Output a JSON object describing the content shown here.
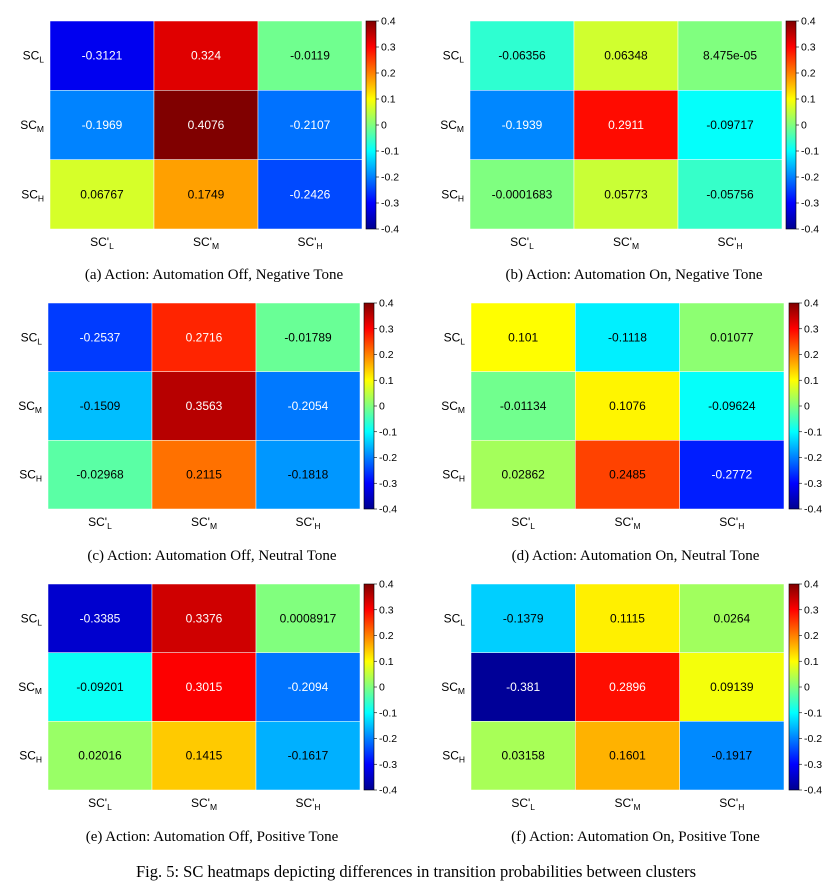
{
  "row_labels": [
    {
      "base": "SC",
      "sub": "L"
    },
    {
      "base": "SC",
      "sub": "M"
    },
    {
      "base": "SC",
      "sub": "H"
    }
  ],
  "col_labels": [
    {
      "base": "SC'",
      "sub": "L"
    },
    {
      "base": "SC'",
      "sub": "M"
    },
    {
      "base": "SC'",
      "sub": "H"
    }
  ],
  "colorbar_ticks": [
    "0.4",
    "0.3",
    "0.2",
    "0.1",
    "0",
    "-0.1",
    "-0.2",
    "-0.3",
    "-0.4"
  ],
  "figure_caption": "Fig. 5: SC heatmaps depicting differences in transition probabilities between clusters",
  "colormap": "jet",
  "chart_data": [
    {
      "type": "heatmap",
      "caption": "(a) Action: Automation Off, Negative Tone",
      "clim": [
        -0.4,
        0.4
      ],
      "values": [
        [
          "-0.3121",
          "0.324",
          "-0.0119"
        ],
        [
          "-0.1969",
          "0.4076",
          "-0.2107"
        ],
        [
          "0.06767",
          "0.1749",
          "-0.2426"
        ]
      ]
    },
    {
      "type": "heatmap",
      "caption": "(b) Action: Automation On, Negative Tone",
      "clim": [
        -0.4,
        0.4
      ],
      "values": [
        [
          "-0.06356",
          "0.06348",
          "8.475e-05"
        ],
        [
          "-0.1939",
          "0.2911",
          "-0.09717"
        ],
        [
          "-0.0001683",
          "0.05773",
          "-0.05756"
        ]
      ]
    },
    {
      "type": "heatmap",
      "caption": "(c) Action: Automation Off, Neutral Tone",
      "clim": [
        -0.4,
        0.4
      ],
      "values": [
        [
          "-0.2537",
          "0.2716",
          "-0.01789"
        ],
        [
          "-0.1509",
          "0.3563",
          "-0.2054"
        ],
        [
          "-0.02968",
          "0.2115",
          "-0.1818"
        ]
      ]
    },
    {
      "type": "heatmap",
      "caption": "(d) Action: Automation On, Neutral Tone",
      "clim": [
        -0.4,
        0.4
      ],
      "values": [
        [
          "0.101",
          "-0.1118",
          "0.01077"
        ],
        [
          "-0.01134",
          "0.1076",
          "-0.09624"
        ],
        [
          "0.02862",
          "0.2485",
          "-0.2772"
        ]
      ]
    },
    {
      "type": "heatmap",
      "caption": "(e) Action: Automation Off, Positive Tone",
      "clim": [
        -0.4,
        0.4
      ],
      "values": [
        [
          "-0.3385",
          "0.3376",
          "0.0008917"
        ],
        [
          "-0.09201",
          "0.3015",
          "-0.2094"
        ],
        [
          "0.02016",
          "0.1415",
          "-0.1617"
        ]
      ]
    },
    {
      "type": "heatmap",
      "caption": "(f) Action: Automation On, Positive Tone",
      "clim": [
        -0.4,
        0.4
      ],
      "values": [
        [
          "-0.1379",
          "0.1115",
          "0.0264"
        ],
        [
          "-0.381",
          "0.2896",
          "0.09139"
        ],
        [
          "0.03158",
          "0.1601",
          "-0.1917"
        ]
      ]
    }
  ]
}
